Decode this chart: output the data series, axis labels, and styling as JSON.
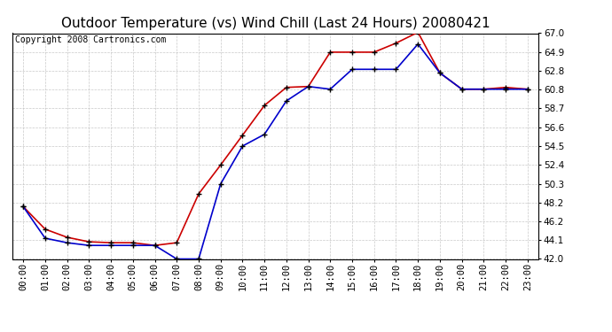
{
  "title": "Outdoor Temperature (vs) Wind Chill (Last 24 Hours) 20080421",
  "copyright": "Copyright 2008 Cartronics.com",
  "x_labels": [
    "00:00",
    "01:00",
    "02:00",
    "03:00",
    "04:00",
    "05:00",
    "06:00",
    "07:00",
    "08:00",
    "09:00",
    "10:00",
    "11:00",
    "12:00",
    "13:00",
    "14:00",
    "15:00",
    "16:00",
    "17:00",
    "18:00",
    "19:00",
    "20:00",
    "21:00",
    "22:00",
    "23:00"
  ],
  "temp_red": [
    47.8,
    45.3,
    44.4,
    43.9,
    43.8,
    43.8,
    43.5,
    43.8,
    49.2,
    52.4,
    55.7,
    59.0,
    61.0,
    61.1,
    64.9,
    64.9,
    64.9,
    65.9,
    67.1,
    62.6,
    60.8,
    60.8,
    61.0,
    60.8
  ],
  "temp_blue": [
    47.8,
    44.3,
    43.8,
    43.5,
    43.5,
    43.5,
    43.5,
    42.0,
    42.0,
    50.3,
    54.5,
    55.8,
    59.5,
    61.1,
    60.8,
    63.0,
    63.0,
    63.0,
    65.8,
    62.6,
    60.8,
    60.8,
    60.8,
    60.8
  ],
  "red_color": "#cc0000",
  "blue_color": "#0000cc",
  "marker_color": "#000000",
  "bg_color": "#ffffff",
  "plot_bg_color": "#ffffff",
  "grid_color": "#bbbbbb",
  "ylim": [
    42.0,
    67.0
  ],
  "yticks": [
    42.0,
    44.1,
    46.2,
    48.2,
    50.3,
    52.4,
    54.5,
    56.6,
    58.7,
    60.8,
    62.8,
    64.9,
    67.0
  ],
  "title_fontsize": 11,
  "copyright_fontsize": 7,
  "tick_fontsize": 7.5,
  "marker_size": 5,
  "linewidth": 1.2
}
